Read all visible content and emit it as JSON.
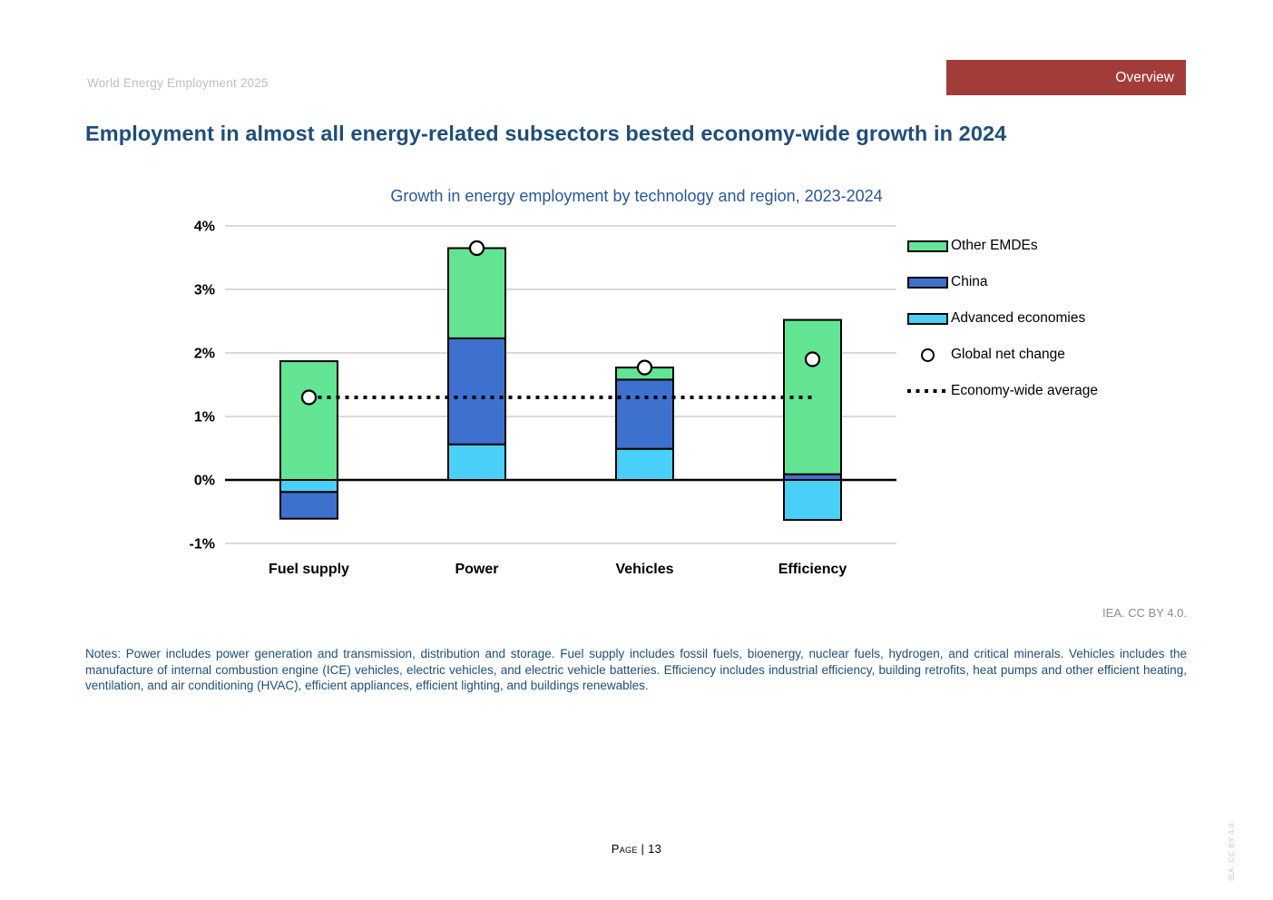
{
  "header": {
    "doc_title": "World Energy Employment 2025",
    "section_badge": "Overview"
  },
  "page_title": "Employment in almost all energy-related subsectors bested economy-wide growth in 2024",
  "chart_data": {
    "type": "bar",
    "stacked": true,
    "title": "Growth in energy employment by technology and region, 2023-2024",
    "unit": "%",
    "categories": [
      "Fuel supply",
      "Power",
      "Vehicles",
      "Efficiency"
    ],
    "series": [
      {
        "name": "Advanced economies",
        "color": "#48D0F8",
        "values": [
          -0.19,
          0.56,
          0.49,
          -0.63
        ]
      },
      {
        "name": "China",
        "color": "#3E70CE",
        "values": [
          -0.42,
          1.67,
          1.09,
          0.09
        ]
      },
      {
        "name": "Other EMDEs",
        "color": "#63E493",
        "values": [
          1.87,
          1.42,
          0.19,
          2.43
        ]
      }
    ],
    "markers": {
      "name": "Global net change",
      "values": [
        1.3,
        3.65,
        1.77,
        1.9
      ]
    },
    "reference_line": {
      "name": "Economy-wide average",
      "value": 1.3,
      "style": "dotted"
    },
    "ylim": [
      -1,
      4
    ],
    "yticks": [
      {
        "value": 4,
        "label": "4%"
      },
      {
        "value": 3,
        "label": "3%"
      },
      {
        "value": 2,
        "label": "2%"
      },
      {
        "value": 1,
        "label": "1%"
      },
      {
        "value": 0,
        "label": "0%"
      },
      {
        "value": -1,
        "label": "-1%"
      }
    ],
    "grid": true,
    "legend_position": "right",
    "legend_order": [
      "Other EMDEs",
      "China",
      "Advanced economies",
      "Global net change",
      "Economy-wide average"
    ]
  },
  "attribution": "IEA. CC BY 4.0.",
  "notes": "Notes: Power includes power generation and transmission, distribution and storage. Fuel supply includes fossil fuels, bioenergy, nuclear fuels, hydrogen, and critical minerals. Vehicles includes the manufacture of internal combustion engine (ICE) vehicles, electric vehicles, and electric vehicle batteries. Efficiency includes industrial efficiency, building retrofits, heat pumps and other efficient heating, ventilation, and air conditioning (HVAC), efficient appliances, efficient lighting, and buildings renewables.",
  "footer": {
    "page_label": "Page | 13",
    "side_attribution": "IEA. CC BY 4.0."
  },
  "colors": {
    "accent_red": "#A23C3A",
    "title_blue": "#1F4E79",
    "chart_title_blue": "#2B5797",
    "grid_gray": "#DADADA",
    "zero_line": "#000000",
    "marker_fill": "#FFFFFF"
  }
}
